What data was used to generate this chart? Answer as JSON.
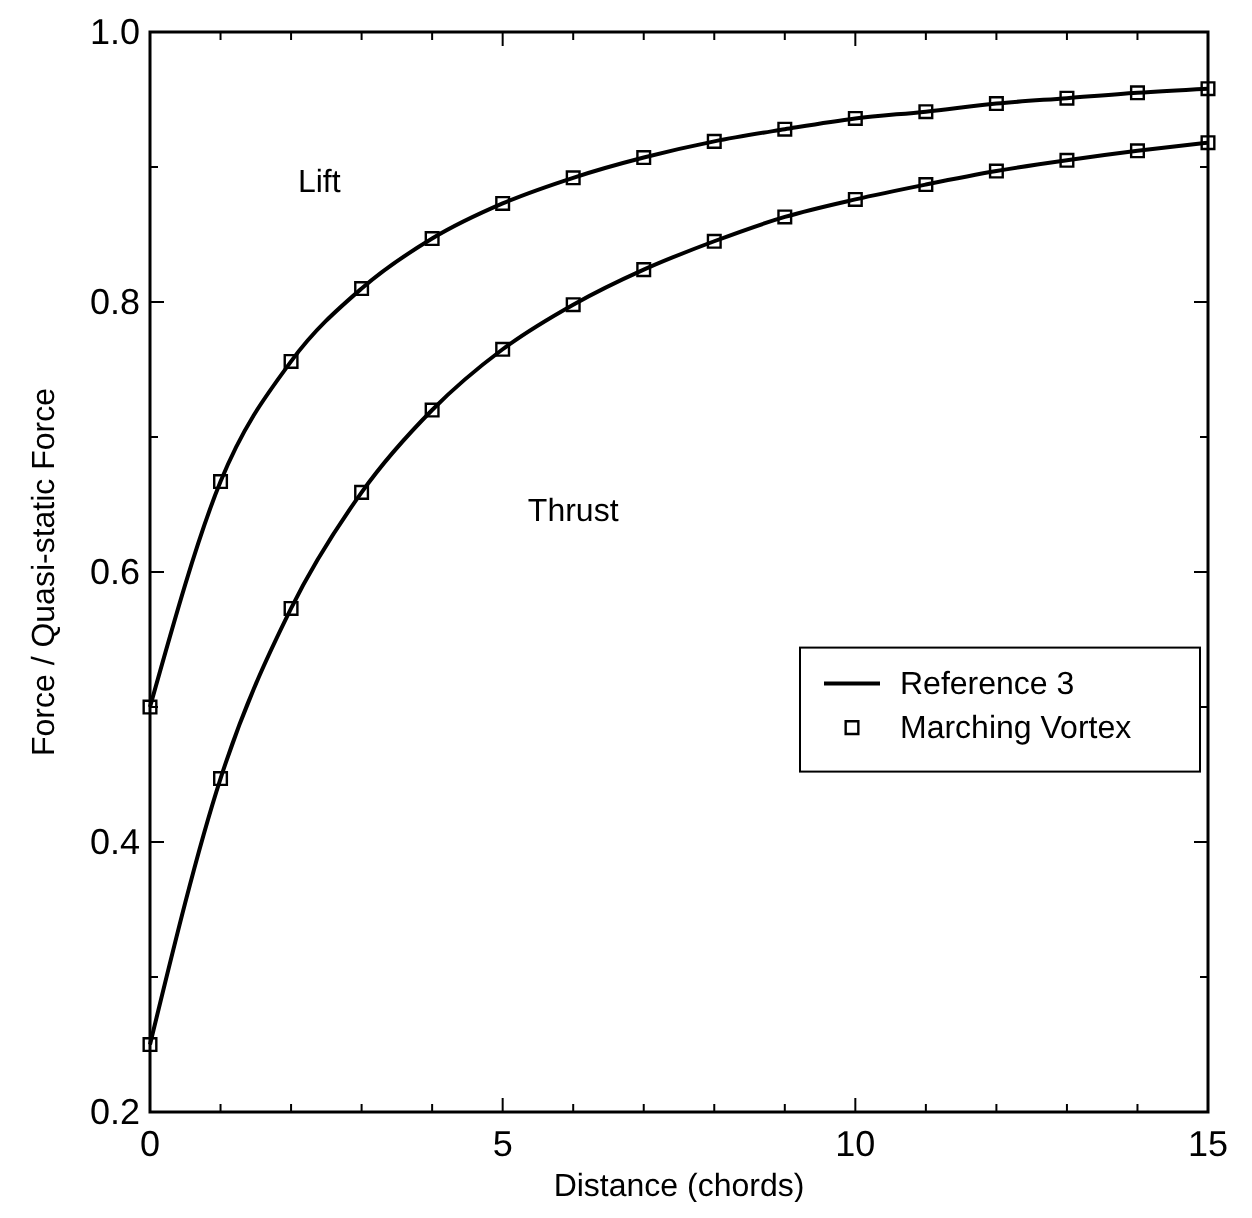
{
  "chart_data": {
    "type": "line",
    "xlabel": "Distance (chords)",
    "ylabel": "Force / Quasi-static Force",
    "x": [
      0,
      1,
      2,
      3,
      4,
      5,
      6,
      7,
      8,
      9,
      10,
      11,
      12,
      13,
      14,
      15
    ],
    "xlim": [
      0,
      15
    ],
    "ylim": [
      0.2,
      1.0
    ],
    "xticks": [
      0,
      {
        "value": 1,
        "label": null
      },
      {
        "value": 2,
        "label": null
      },
      {
        "value": 3,
        "label": null
      },
      {
        "value": 4,
        "label": null
      },
      5,
      {
        "value": 6,
        "label": null
      },
      {
        "value": 7,
        "label": null
      },
      {
        "value": 8,
        "label": null
      },
      {
        "value": 9,
        "label": null
      },
      10,
      {
        "value": 11,
        "label": null
      },
      {
        "value": 12,
        "label": null
      },
      {
        "value": 13,
        "label": null
      },
      {
        "value": 14,
        "label": null
      },
      15
    ],
    "yticks": [
      {
        "value": 0.2,
        "label": "0.2"
      },
      {
        "value": 0.3,
        "label": null
      },
      {
        "value": 0.4,
        "label": "0.4"
      },
      {
        "value": 0.5,
        "label": null
      },
      {
        "value": 0.6,
        "label": "0.6"
      },
      {
        "value": 0.7,
        "label": null
      },
      {
        "value": 0.8,
        "label": "0.8"
      },
      {
        "value": 0.9,
        "label": null
      },
      {
        "value": 1.0,
        "label": "1.0"
      }
    ],
    "grid": false,
    "legend": "bottom right",
    "series": [
      {
        "name": "Reference 3",
        "color": "#000000",
        "marker": "none",
        "line_style": "solid",
        "values": [
          0.5,
          0.667,
          0.756,
          0.81,
          0.847,
          0.873,
          0.892,
          0.907,
          0.919,
          0.928,
          0.936,
          0.941,
          0.947,
          0.951,
          0.955,
          0.958
        ]
      },
      {
        "color": "#000000",
        "marker": "none",
        "line_style": "solid",
        "values": [
          0.25,
          0.447,
          0.573,
          0.659,
          0.72,
          0.765,
          0.798,
          0.824,
          0.845,
          0.863,
          0.876,
          0.887,
          0.897,
          0.905,
          0.912,
          0.918
        ]
      },
      {
        "name": "Marching Vortex",
        "type": "scatter",
        "color": "#000000",
        "marker": "square",
        "values": [
          0.5,
          0.667,
          0.756,
          0.81,
          0.847,
          0.873,
          0.892,
          0.907,
          0.919,
          0.928,
          0.936,
          0.941,
          0.947,
          0.951,
          0.955,
          0.958
        ]
      },
      {
        "type": "scatter",
        "color": "#000000",
        "marker": "square",
        "values": [
          0.25,
          0.447,
          0.573,
          0.659,
          0.72,
          0.765,
          0.798,
          0.824,
          0.845,
          0.863,
          0.876,
          0.887,
          0.897,
          0.905,
          0.912,
          0.918
        ]
      }
    ],
    "annotations": [
      "Lift",
      "Thrust"
    ]
  }
}
